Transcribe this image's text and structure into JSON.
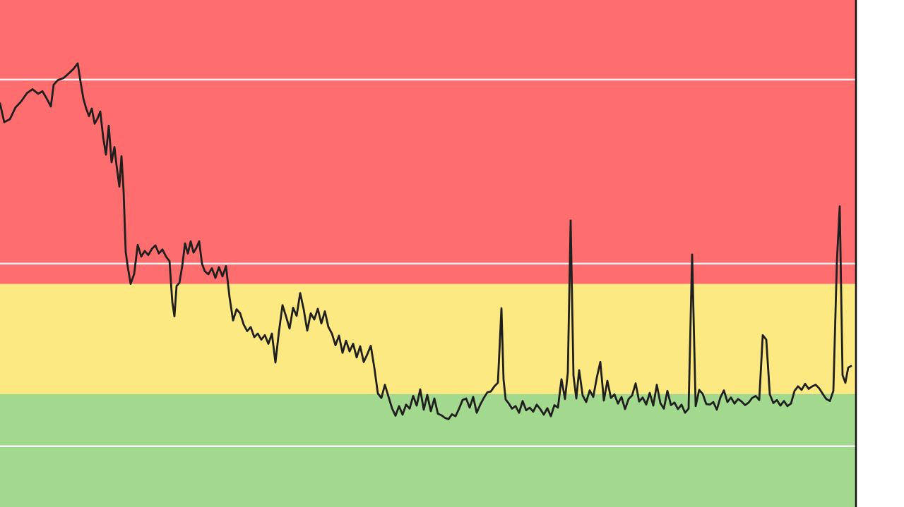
{
  "chart_data": {
    "type": "line",
    "title": "",
    "xlabel": "",
    "ylabel": "",
    "grid": "horizontal",
    "legend": "none",
    "ylim": [
      0,
      100
    ],
    "bands": [
      {
        "name": "",
        "from": 0,
        "to": 22.3,
        "color": "#a3d98e"
      },
      {
        "name": "",
        "from": 22.3,
        "to": 44.0,
        "color": "#fce982"
      },
      {
        "name": "",
        "from": 44.0,
        "to": 100,
        "color": "#fe6e6e"
      }
    ],
    "gridlines": [
      12.0,
      48.0,
      84.3
    ],
    "series": [
      {
        "name": "",
        "color": "#1f1f1f",
        "points": [
          [
            0,
            79.6
          ],
          [
            6,
            75.9
          ],
          [
            14,
            76.5
          ],
          [
            22,
            78.8
          ],
          [
            30,
            80.0
          ],
          [
            38,
            81.6
          ],
          [
            46,
            82.4
          ],
          [
            54,
            81.5
          ],
          [
            60,
            82.0
          ],
          [
            66,
            80.6
          ],
          [
            72,
            79.0
          ],
          [
            76,
            83.3
          ],
          [
            82,
            84.2
          ],
          [
            90,
            84.6
          ],
          [
            98,
            85.6
          ],
          [
            104,
            86.4
          ],
          [
            110,
            87.5
          ],
          [
            114,
            83.9
          ],
          [
            118,
            80.6
          ],
          [
            122,
            78.6
          ],
          [
            126,
            77.1
          ],
          [
            130,
            78.6
          ],
          [
            134,
            75.6
          ],
          [
            138,
            76.6
          ],
          [
            142,
            78.0
          ],
          [
            146,
            73.0
          ],
          [
            150,
            69.5
          ],
          [
            154,
            75.2
          ],
          [
            158,
            68.0
          ],
          [
            162,
            71.0
          ],
          [
            165,
            67.4
          ],
          [
            169,
            63.2
          ],
          [
            172,
            69.2
          ],
          [
            175,
            62.3
          ],
          [
            178,
            50.3
          ],
          [
            181,
            47.3
          ],
          [
            185,
            44.0
          ],
          [
            190,
            46.0
          ],
          [
            195,
            51.7
          ],
          [
            200,
            49.4
          ],
          [
            205,
            50.5
          ],
          [
            210,
            49.7
          ],
          [
            215,
            50.9
          ],
          [
            220,
            51.6
          ],
          [
            225,
            50.0
          ],
          [
            230,
            50.8
          ],
          [
            235,
            49.4
          ],
          [
            240,
            48.5
          ],
          [
            244,
            40.4
          ],
          [
            247,
            37.6
          ],
          [
            250,
            43.6
          ],
          [
            254,
            44.2
          ],
          [
            258,
            47.5
          ],
          [
            262,
            52.0
          ],
          [
            266,
            50.0
          ],
          [
            270,
            52.4
          ],
          [
            274,
            50.2
          ],
          [
            278,
            51.1
          ],
          [
            282,
            52.4
          ],
          [
            286,
            48.0
          ],
          [
            290,
            46.5
          ],
          [
            295,
            45.9
          ],
          [
            300,
            47.1
          ],
          [
            305,
            45.2
          ],
          [
            310,
            47.3
          ],
          [
            315,
            45.5
          ],
          [
            320,
            47.5
          ],
          [
            325,
            41.4
          ],
          [
            330,
            36.8
          ],
          [
            335,
            39.0
          ],
          [
            340,
            38.2
          ],
          [
            345,
            36.0
          ],
          [
            350,
            34.7
          ],
          [
            355,
            35.5
          ],
          [
            360,
            33.5
          ],
          [
            365,
            34.2
          ],
          [
            370,
            33.0
          ],
          [
            375,
            33.9
          ],
          [
            380,
            32.2
          ],
          [
            385,
            34.2
          ],
          [
            390,
            28.5
          ],
          [
            395,
            34.6
          ],
          [
            400,
            39.8
          ],
          [
            405,
            37.6
          ],
          [
            410,
            35.2
          ],
          [
            415,
            39.3
          ],
          [
            420,
            37.7
          ],
          [
            425,
            42.2
          ],
          [
            430,
            39.0
          ],
          [
            435,
            34.8
          ],
          [
            440,
            38.2
          ],
          [
            445,
            37.0
          ],
          [
            450,
            39.1
          ],
          [
            455,
            36.2
          ],
          [
            460,
            38.6
          ],
          [
            465,
            35.5
          ],
          [
            470,
            34.2
          ],
          [
            475,
            31.9
          ],
          [
            480,
            33.8
          ],
          [
            485,
            30.4
          ],
          [
            490,
            32.8
          ],
          [
            495,
            30.7
          ],
          [
            500,
            32.2
          ],
          [
            505,
            29.5
          ],
          [
            510,
            31.7
          ],
          [
            515,
            28.6
          ],
          [
            520,
            30.1
          ],
          [
            525,
            31.8
          ],
          [
            530,
            27.5
          ],
          [
            535,
            22.4
          ],
          [
            540,
            21.5
          ],
          [
            545,
            24.1
          ],
          [
            550,
            21.8
          ],
          [
            555,
            19.5
          ],
          [
            560,
            18.0
          ],
          [
            565,
            19.9
          ],
          [
            570,
            18.2
          ],
          [
            575,
            20.2
          ],
          [
            580,
            19.4
          ],
          [
            585,
            21.9
          ],
          [
            590,
            20.0
          ],
          [
            595,
            23.2
          ],
          [
            600,
            19.2
          ],
          [
            605,
            22.1
          ],
          [
            610,
            18.9
          ],
          [
            615,
            21.4
          ],
          [
            620,
            18.4
          ],
          [
            625,
            18.1
          ],
          [
            630,
            17.6
          ],
          [
            635,
            17.3
          ],
          [
            640,
            18.3
          ],
          [
            645,
            17.9
          ],
          [
            650,
            19.4
          ],
          [
            655,
            21.1
          ],
          [
            660,
            21.4
          ],
          [
            665,
            19.6
          ],
          [
            670,
            21.7
          ],
          [
            675,
            18.6
          ],
          [
            680,
            20.2
          ],
          [
            685,
            21.5
          ],
          [
            690,
            22.6
          ],
          [
            695,
            22.8
          ],
          [
            700,
            23.8
          ],
          [
            705,
            24.5
          ],
          [
            710,
            39.2
          ],
          [
            713,
            25.1
          ],
          [
            716,
            21.2
          ],
          [
            720,
            20.5
          ],
          [
            725,
            19.4
          ],
          [
            730,
            19.9
          ],
          [
            735,
            18.6
          ],
          [
            740,
            20.9
          ],
          [
            745,
            19.1
          ],
          [
            750,
            19.6
          ],
          [
            755,
            18.8
          ],
          [
            760,
            20.2
          ],
          [
            765,
            19.3
          ],
          [
            770,
            18.2
          ],
          [
            775,
            19.5
          ],
          [
            780,
            17.9
          ],
          [
            785,
            20.1
          ],
          [
            790,
            19.6
          ],
          [
            795,
            25.2
          ],
          [
            800,
            21.3
          ],
          [
            804,
            26.5
          ],
          [
            808,
            56.5
          ],
          [
            812,
            25.9
          ],
          [
            816,
            21.4
          ],
          [
            820,
            27.0
          ],
          [
            825,
            22.0
          ],
          [
            830,
            20.7
          ],
          [
            835,
            23.0
          ],
          [
            840,
            21.7
          ],
          [
            845,
            25.5
          ],
          [
            850,
            28.6
          ],
          [
            855,
            21.0
          ],
          [
            860,
            24.9
          ],
          [
            865,
            21.5
          ],
          [
            870,
            22.2
          ],
          [
            875,
            20.4
          ],
          [
            880,
            21.7
          ],
          [
            885,
            19.3
          ],
          [
            890,
            21.3
          ],
          [
            895,
            22.0
          ],
          [
            900,
            24.4
          ],
          [
            905,
            20.8
          ],
          [
            910,
            21.6
          ],
          [
            915,
            20.2
          ],
          [
            920,
            22.5
          ],
          [
            925,
            20.0
          ],
          [
            930,
            24.1
          ],
          [
            935,
            20.5
          ],
          [
            940,
            19.4
          ],
          [
            945,
            22.9
          ],
          [
            950,
            20.1
          ],
          [
            955,
            20.6
          ],
          [
            960,
            19.3
          ],
          [
            965,
            20.2
          ],
          [
            970,
            18.6
          ],
          [
            975,
            19.4
          ],
          [
            980,
            49.8
          ],
          [
            985,
            19.9
          ],
          [
            990,
            23.1
          ],
          [
            995,
            22.3
          ],
          [
            1000,
            20.3
          ],
          [
            1005,
            20.2
          ],
          [
            1010,
            20.7
          ],
          [
            1015,
            19.2
          ],
          [
            1020,
            21.6
          ],
          [
            1025,
            23.0
          ],
          [
            1030,
            20.7
          ],
          [
            1035,
            21.6
          ],
          [
            1040,
            20.4
          ],
          [
            1045,
            21.3
          ],
          [
            1050,
            20.8
          ],
          [
            1055,
            20.1
          ],
          [
            1060,
            20.6
          ],
          [
            1065,
            21.5
          ],
          [
            1070,
            21.9
          ],
          [
            1075,
            21.1
          ],
          [
            1080,
            33.9
          ],
          [
            1085,
            33.0
          ],
          [
            1090,
            22.2
          ],
          [
            1095,
            20.5
          ],
          [
            1100,
            21.1
          ],
          [
            1105,
            20.0
          ],
          [
            1110,
            20.9
          ],
          [
            1115,
            19.9
          ],
          [
            1120,
            20.4
          ],
          [
            1125,
            22.9
          ],
          [
            1130,
            23.8
          ],
          [
            1135,
            23.1
          ],
          [
            1140,
            24.3
          ],
          [
            1145,
            23.3
          ],
          [
            1150,
            23.8
          ],
          [
            1155,
            24.1
          ],
          [
            1160,
            23.4
          ],
          [
            1165,
            22.3
          ],
          [
            1170,
            21.3
          ],
          [
            1175,
            20.9
          ],
          [
            1180,
            22.9
          ],
          [
            1185,
            48.5
          ],
          [
            1189,
            59.3
          ],
          [
            1193,
            26.0
          ],
          [
            1197,
            24.5
          ],
          [
            1201,
            27.5
          ],
          [
            1205,
            27.8
          ]
        ]
      }
    ]
  }
}
